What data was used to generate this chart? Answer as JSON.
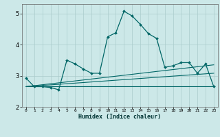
{
  "xlabel": "Humidex (Indice chaleur)",
  "background_color": "#cce8e8",
  "grid_color": "#aacccc",
  "line_color": "#006666",
  "xlim": [
    -0.5,
    23.5
  ],
  "ylim": [
    2.0,
    5.3
  ],
  "yticks": [
    2,
    3,
    4,
    5
  ],
  "xticks": [
    0,
    1,
    2,
    3,
    4,
    5,
    6,
    7,
    8,
    9,
    10,
    11,
    12,
    13,
    14,
    15,
    16,
    17,
    18,
    19,
    20,
    21,
    22,
    23
  ],
  "series_main": {
    "x": [
      0,
      1,
      2,
      3,
      4,
      5,
      6,
      7,
      8,
      9,
      10,
      11,
      12,
      13,
      14,
      15,
      16,
      17,
      18,
      19,
      20,
      21,
      22,
      23
    ],
    "y": [
      2.92,
      2.65,
      2.65,
      2.62,
      2.55,
      3.5,
      3.38,
      3.22,
      3.08,
      3.08,
      4.25,
      4.38,
      5.07,
      4.92,
      4.65,
      4.35,
      4.2,
      3.27,
      3.32,
      3.42,
      3.42,
      3.08,
      3.38,
      2.65
    ],
    "marker": "D",
    "markersize": 2.0,
    "linewidth": 0.9
  },
  "series_line2": {
    "x": [
      0,
      23
    ],
    "y": [
      2.65,
      2.65
    ],
    "linewidth": 0.8
  },
  "series_line3": {
    "x": [
      0,
      23
    ],
    "y": [
      2.65,
      3.35
    ],
    "linewidth": 0.8
  },
  "series_line4": {
    "x": [
      0,
      23
    ],
    "y": [
      2.65,
      3.08
    ],
    "linewidth": 0.8
  }
}
